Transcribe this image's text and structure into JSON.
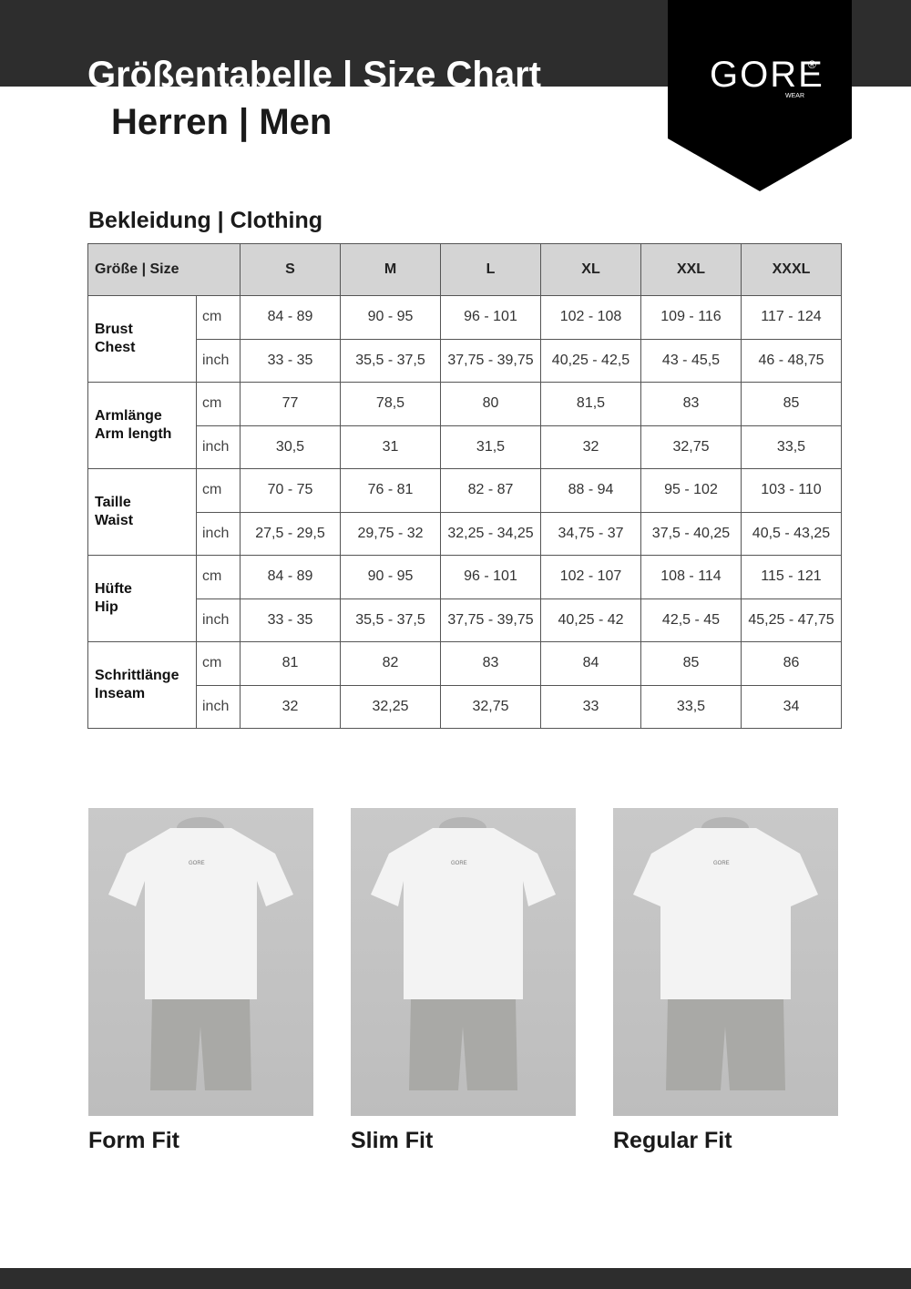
{
  "header": {
    "title": "Größentabelle | Size Chart",
    "subtitle": "Herren | Men",
    "logo_text": "GORE",
    "logo_sub": "WEAR",
    "logo_mark": "®"
  },
  "section_title": "Bekleidung | Clothing",
  "table": {
    "corner": "Größe | Size",
    "sizes": [
      "S",
      "M",
      "L",
      "XL",
      "XXL",
      "XXXL"
    ],
    "groups": [
      {
        "label": [
          "Brust",
          "Chest"
        ],
        "rows": [
          {
            "unit": "cm",
            "values": [
              "84 - 89",
              "90 - 95",
              "96 - 101",
              "102 - 108",
              "109 - 116",
              "117 - 124"
            ]
          },
          {
            "unit": "inch",
            "values": [
              "33 - 35",
              "35,5 - 37,5",
              "37,75 - 39,75",
              "40,25 - 42,5",
              "43 - 45,5",
              "46 - 48,75"
            ]
          }
        ]
      },
      {
        "label": [
          "Armlänge",
          "Arm length"
        ],
        "rows": [
          {
            "unit": "cm",
            "values": [
              "77",
              "78,5",
              "80",
              "81,5",
              "83",
              "85"
            ]
          },
          {
            "unit": "inch",
            "values": [
              "30,5",
              "31",
              "31,5",
              "32",
              "32,75",
              "33,5"
            ]
          }
        ]
      },
      {
        "label": [
          "Taille",
          "Waist"
        ],
        "rows": [
          {
            "unit": "cm",
            "values": [
              "70 - 75",
              "76 - 81",
              "82 - 87",
              "88 - 94",
              "95 - 102",
              "103 - 110"
            ]
          },
          {
            "unit": "inch",
            "values": [
              "27,5 - 29,5",
              "29,75 - 32",
              "32,25 - 34,25",
              "34,75 - 37",
              "37,5 - 40,25",
              "40,5 - 43,25"
            ]
          }
        ]
      },
      {
        "label": [
          "Hüfte",
          "Hip"
        ],
        "rows": [
          {
            "unit": "cm",
            "values": [
              "84 - 89",
              "90 - 95",
              "96 - 101",
              "102 - 107",
              "108 - 114",
              "115 - 121"
            ]
          },
          {
            "unit": "inch",
            "values": [
              "33 - 35",
              "35,5 - 37,5",
              "37,75 - 39,75",
              "40,25 - 42",
              "42,5 - 45",
              "45,25 - 47,75"
            ]
          }
        ]
      },
      {
        "label": [
          "Schrittlänge",
          "Inseam"
        ],
        "rows": [
          {
            "unit": "cm",
            "values": [
              "81",
              "82",
              "83",
              "84",
              "85",
              "86"
            ]
          },
          {
            "unit": "inch",
            "values": [
              "32",
              "32,25",
              "32,75",
              "33",
              "33,5",
              "34"
            ]
          }
        ]
      }
    ]
  },
  "fits": [
    {
      "label": "Form Fit"
    },
    {
      "label": "Slim Fit"
    },
    {
      "label": "Regular Fit"
    }
  ],
  "colors": {
    "band": "#2d2d2d",
    "logo_bg": "#000000",
    "header_cell": "#d4d4d4",
    "photo_bg": "#c4c4c4"
  }
}
